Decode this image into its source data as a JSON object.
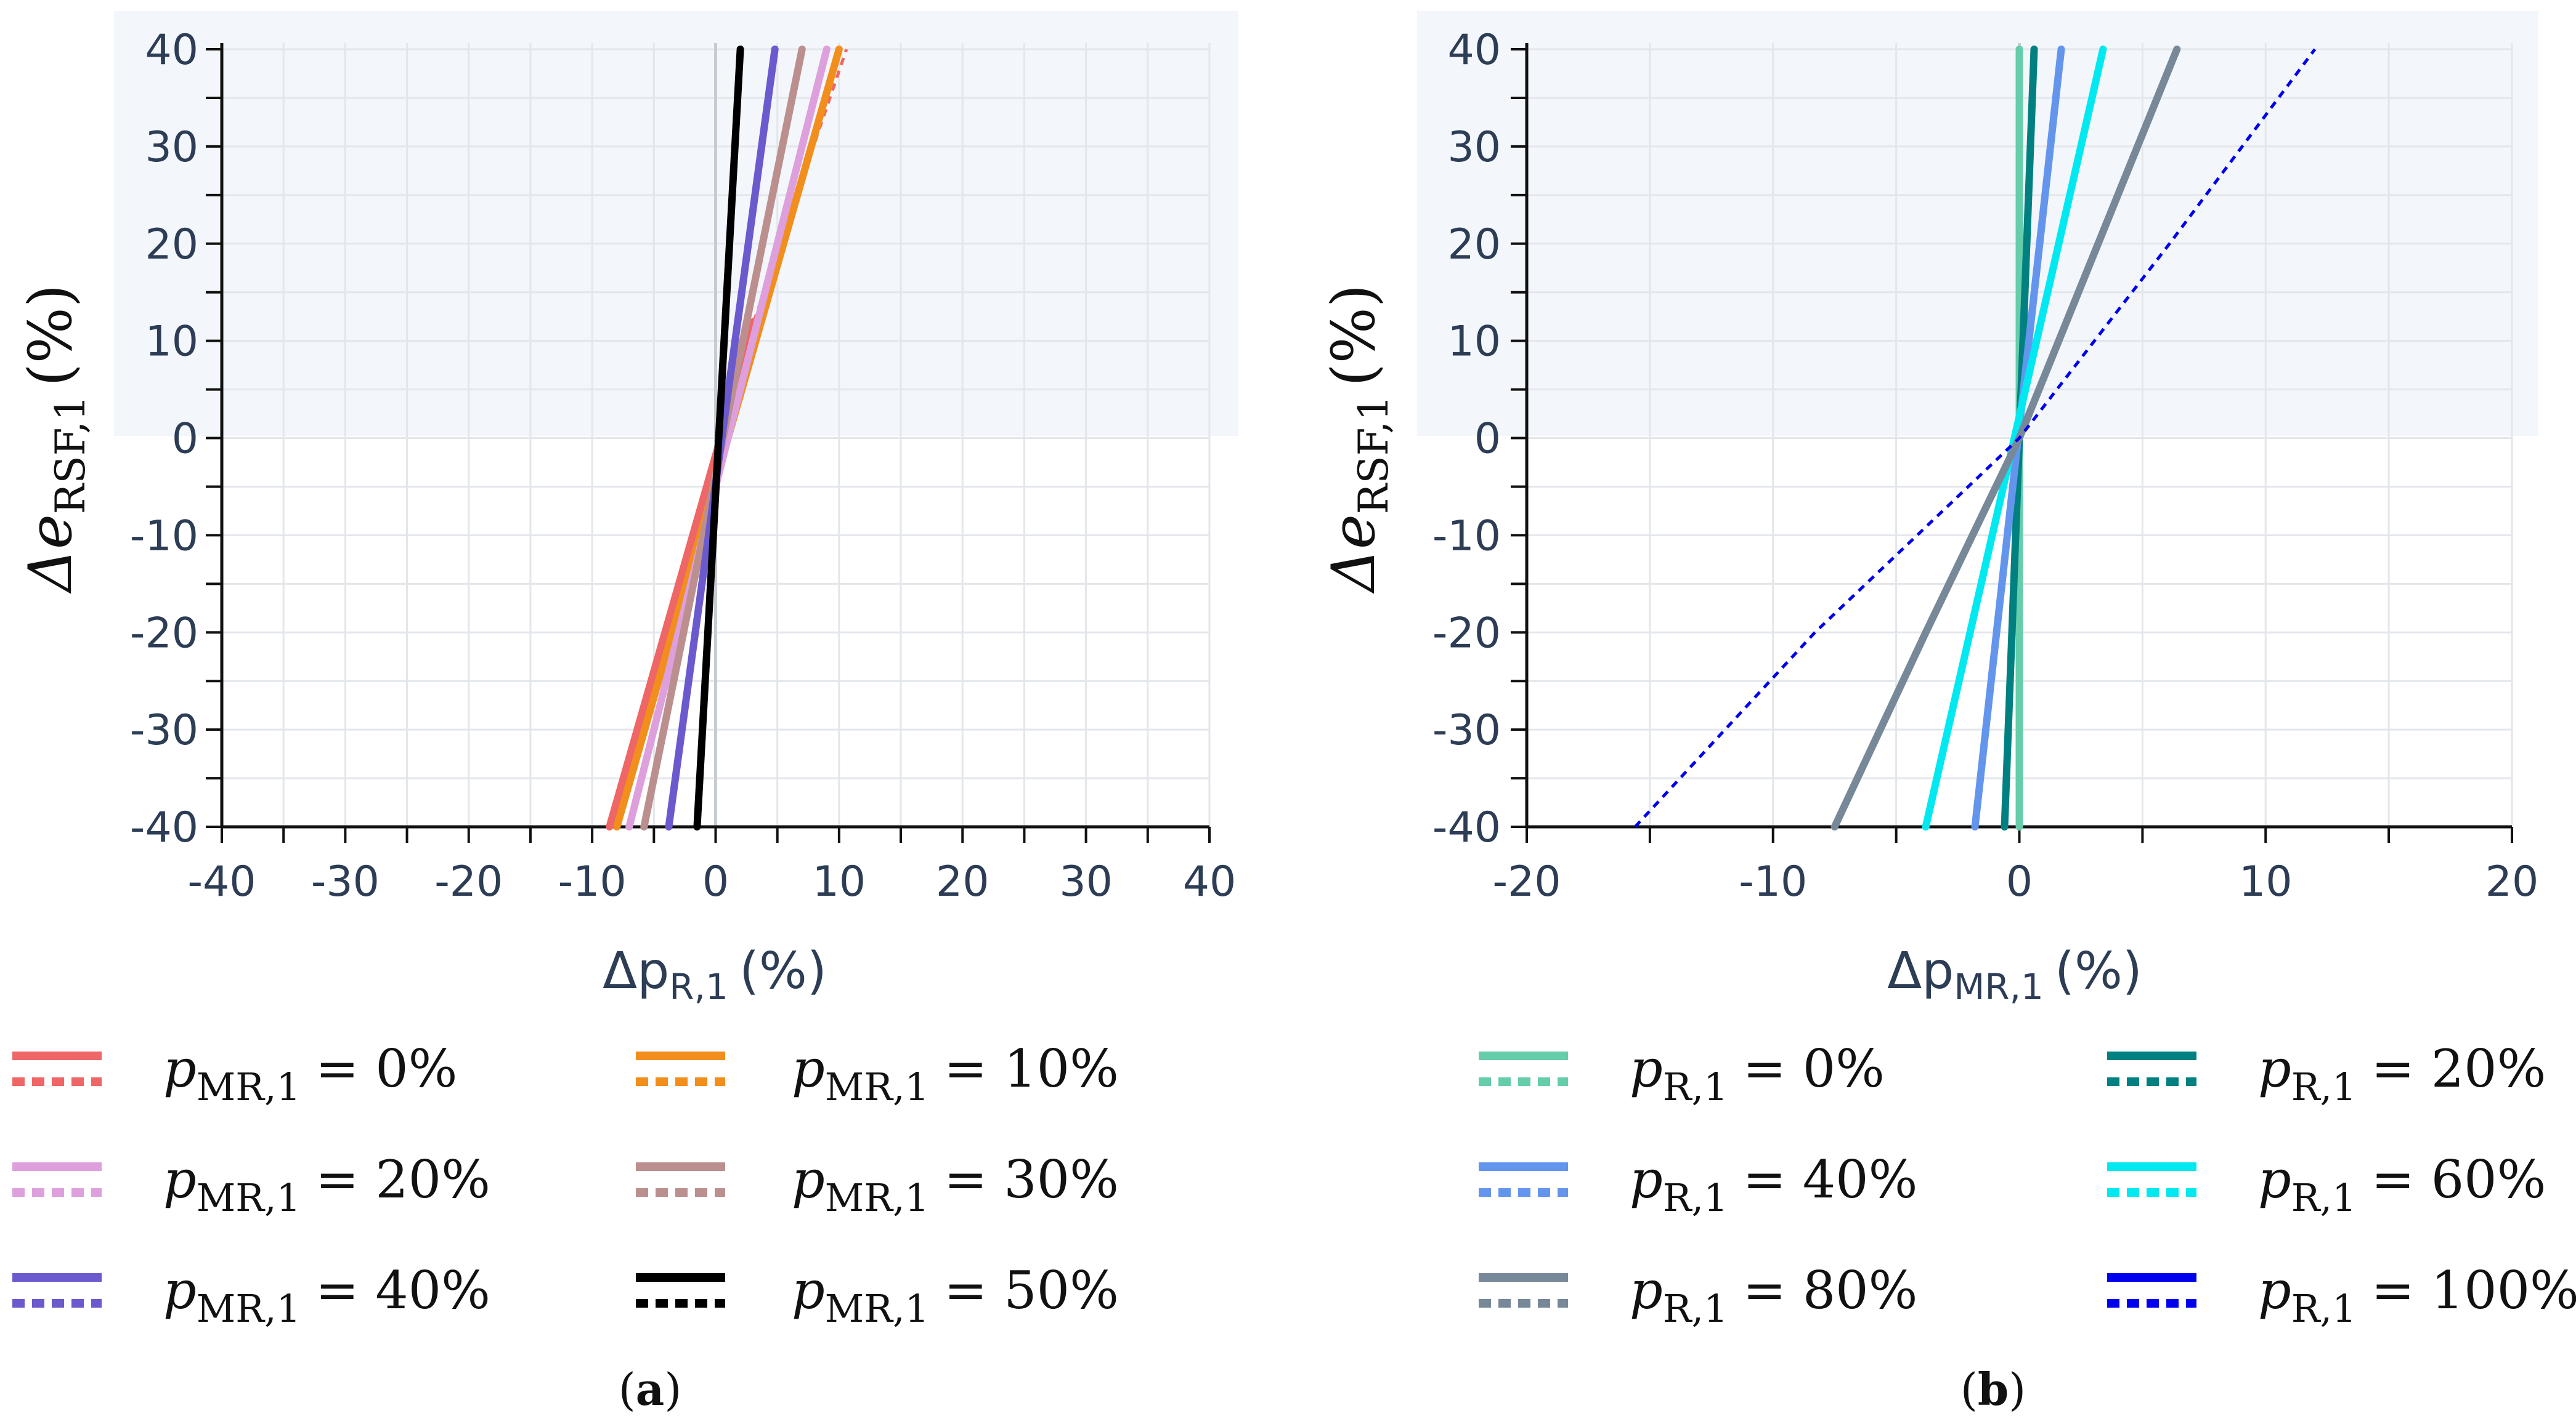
{
  "chart_data": [
    {
      "type": "line",
      "panel_label": "a",
      "xlabel": "Δp",
      "xlabel_sub": "R,1",
      "ylabel": "Δe",
      "ylabel_sub": "RSF,1",
      "unit_label": "(%)",
      "xlim": [
        -40,
        40
      ],
      "ylim": [
        -40,
        40
      ],
      "xticks": [
        "-40",
        "-30",
        "-20",
        "-10",
        "0",
        "10",
        "20",
        "30",
        "40"
      ],
      "yticks": [
        "40",
        "30",
        "20",
        "10",
        "0",
        "-10",
        "-20",
        "-30",
        "-40"
      ],
      "series": [
        {
          "name": "p_MR,1 = 0%",
          "param": "MR,1",
          "label": "= 0%",
          "color": "#ee6666",
          "solid": [
            [
              -8.6,
              -40
            ],
            [
              3.1,
              12
            ]
          ],
          "dotted": [
            [
              3.1,
              12
            ],
            [
              10.6,
              40
            ]
          ]
        },
        {
          "name": "p_MR,1 = 10%",
          "param": "MR,1",
          "label": "= 10%",
          "color": "#f28e1c",
          "solid": [
            [
              -8.0,
              -40
            ],
            [
              10.0,
              40
            ]
          ],
          "dotted": []
        },
        {
          "name": "p_MR,1 = 20%",
          "param": "MR,1",
          "label": "= 20%",
          "color": "#dda0dd",
          "solid": [
            [
              -7.0,
              -40
            ],
            [
              9.0,
              40
            ]
          ],
          "dotted": []
        },
        {
          "name": "p_MR,1 = 30%",
          "param": "MR,1",
          "label": "= 30%",
          "color": "#bc8f8f",
          "solid": [
            [
              -5.8,
              -40
            ],
            [
              7.0,
              40
            ]
          ],
          "dotted": []
        },
        {
          "name": "p_MR,1 = 40%",
          "param": "MR,1",
          "label": "= 40%",
          "color": "#6a5acd",
          "solid": [
            [
              -3.8,
              -40
            ],
            [
              4.8,
              40
            ]
          ],
          "dotted": []
        },
        {
          "name": "p_MR,1 = 50%",
          "param": "MR,1",
          "label": "= 50%",
          "color": "#000000",
          "solid": [
            [
              -1.5,
              -40
            ],
            [
              2.0,
              40
            ]
          ],
          "dotted": []
        }
      ]
    },
    {
      "type": "line",
      "panel_label": "b",
      "xlabel": "Δp",
      "xlabel_sub": "MR,1",
      "ylabel": "Δe",
      "ylabel_sub": "RSF,1",
      "unit_label": "(%)",
      "xlim": [
        -20,
        20
      ],
      "ylim": [
        -40,
        40
      ],
      "xticks": [
        "-20",
        "-10",
        "0",
        "10",
        "20"
      ],
      "yticks": [
        "40",
        "30",
        "20",
        "10",
        "0",
        "-10",
        "-20",
        "-30",
        "-40"
      ],
      "series": [
        {
          "name": "p_R,1 = 0%",
          "param": "R,1",
          "label": "= 0%",
          "color": "#66cdaa",
          "solid": [
            [
              0.0,
              -40
            ],
            [
              0.0,
              40
            ]
          ],
          "dotted": []
        },
        {
          "name": "p_R,1 = 20%",
          "param": "R,1",
          "label": "= 20%",
          "color": "#008080",
          "solid": [
            [
              -0.6,
              -40
            ],
            [
              0.6,
              40
            ]
          ],
          "dotted": []
        },
        {
          "name": "p_R,1 = 40%",
          "param": "R,1",
          "label": "= 40%",
          "color": "#6495ed",
          "solid": [
            [
              -1.8,
              -40
            ],
            [
              1.7,
              40
            ]
          ],
          "dotted": []
        },
        {
          "name": "p_R,1 = 60%",
          "param": "R,1",
          "label": "= 60%",
          "color": "#00e8f0",
          "solid": [
            [
              -3.8,
              -40
            ],
            [
              3.4,
              40
            ]
          ],
          "dotted": []
        },
        {
          "name": "p_R,1 = 80%",
          "param": "R,1",
          "label": "= 80%",
          "color": "#778899",
          "solid": [
            [
              -7.5,
              -40
            ],
            [
              -3.8,
              -20
            ],
            [
              0,
              0
            ],
            [
              3.2,
              20
            ],
            [
              6.4,
              40
            ]
          ],
          "dotted": []
        },
        {
          "name": "p_R,1 = 100%",
          "param": "R,1",
          "label": "= 100%",
          "color": "#0000ee",
          "solid": [],
          "dotted": [
            [
              -15.6,
              -40
            ],
            [
              -8.3,
              -20
            ],
            [
              0,
              0
            ],
            [
              6.1,
              20
            ],
            [
              12.0,
              40
            ]
          ]
        }
      ]
    }
  ]
}
